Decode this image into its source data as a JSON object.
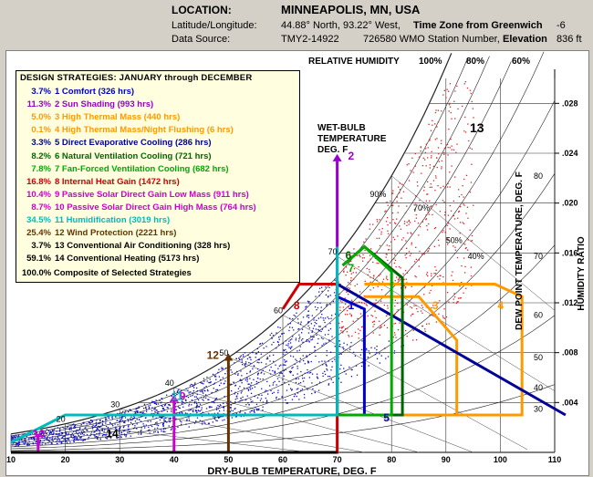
{
  "header": {
    "location_label": "LOCATION:",
    "location_value": "MINNEAPOLIS, MN, USA",
    "latlon_label": "Latitude/Longitude:",
    "latlon_value": "44.88° North, 93.22° West,",
    "tz_label": "Time Zone from Greenwich",
    "tz_value": "-6",
    "source_label": "Data Source:",
    "source_value": "TMY2-14922",
    "station_value": "726580 WMO Station Number,",
    "elev_label": "Elevation",
    "elev_value": "836 ft"
  },
  "legend": {
    "title": "DESIGN STRATEGIES: JANUARY through DECEMBER",
    "items": [
      {
        "pct": "3.7%",
        "text": "1  Comfort (326 hrs)",
        "color": "#0000cc"
      },
      {
        "pct": "11.3%",
        "text": "2  Sun Shading (993 hrs)",
        "color": "#9900cc"
      },
      {
        "pct": "5.0%",
        "text": "3  High Thermal Mass (440 hrs)",
        "color": "#ff9900"
      },
      {
        "pct": "0.1%",
        "text": "4  High Thermal Mass/Night Flushing (6 hrs)",
        "color": "#ff9900"
      },
      {
        "pct": "3.3%",
        "text": "5  Direct Evaporative Cooling (286 hrs)",
        "color": "#000099"
      },
      {
        "pct": "8.2%",
        "text": "6  Natural Ventilation Cooling (721 hrs)",
        "color": "#006600"
      },
      {
        "pct": "7.8%",
        "text": "7  Fan-Forced Ventilation Cooling (682 hrs)",
        "color": "#00aa00"
      },
      {
        "pct": "16.8%",
        "text": "8  Internal Heat Gain (1472 hrs)",
        "color": "#cc0000"
      },
      {
        "pct": "10.4%",
        "text": "9  Passive Solar Direct Gain Low Mass (911 hrs)",
        "color": "#cc00cc"
      },
      {
        "pct": "8.7%",
        "text": "10 Passive Solar Direct Gain High Mass (764 hrs)",
        "color": "#cc00cc"
      },
      {
        "pct": "34.5%",
        "text": "11  Humidification (3019 hrs)",
        "color": "#00bbbb"
      },
      {
        "pct": "25.4%",
        "text": "12  Wind Protection (2221 hrs)",
        "color": "#663300"
      },
      {
        "pct": "3.7%",
        "text": "13  Conventional Air Conditioning (328 hrs)",
        "color": "#000000"
      },
      {
        "pct": "59.1%",
        "text": "14  Conventional Heating (5173 hrs)",
        "color": "#000000"
      }
    ],
    "composite": "100.0% Composite of Selected Strategies"
  },
  "chart_data": {
    "type": "psychrometric",
    "xlabel": "DRY-BULB TEMPERATURE, DEG. F",
    "ylabel_right": "HUMIDITY RATIO",
    "dewpoint_label": "DEW POINT TEMPERATURE, DEG. F",
    "rh_title": "RELATIVE HUMIDITY",
    "rh_top_labels": [
      "100%",
      "80%",
      "60%"
    ],
    "rh_inner_labels": [
      "90%",
      "70%",
      "50%",
      "40%"
    ],
    "wetbulb_label": [
      "WET-BULB",
      "TEMPERATURE",
      "DEG. F"
    ],
    "zone_13_label": "13",
    "xlim": [
      10,
      110
    ],
    "ylim": [
      0,
      0.03
    ],
    "x_ticks": [
      10,
      20,
      30,
      40,
      50,
      60,
      70,
      80,
      90,
      100,
      110
    ],
    "y_ticks": [
      ".004",
      ".008",
      ".012",
      ".016",
      ".020",
      ".024",
      ".028"
    ],
    "y_tick_values": [
      0.004,
      0.008,
      0.012,
      0.016,
      0.02,
      0.024,
      0.028
    ],
    "dewpoint_ticks": [
      "30",
      "40",
      "50",
      "60",
      "70",
      "80"
    ],
    "wetbulb_ticks": [
      "20",
      "30",
      "40",
      "50",
      "60",
      "70"
    ],
    "zones": [
      {
        "id": "1",
        "color": "#0000cc",
        "points": [
          [
            70,
            0.003
          ],
          [
            75,
            0.003
          ],
          [
            75,
            0.0115
          ],
          [
            70,
            0.0125
          ]
        ]
      },
      {
        "id": "2",
        "color": "#9900cc",
        "points": [
          [
            70,
            0.003
          ],
          [
            70,
            0.0235
          ]
        ]
      },
      {
        "id": "3",
        "color": "#ff9900",
        "points": [
          [
            75,
            0.003
          ],
          [
            92,
            0.003
          ],
          [
            92,
            0.009
          ],
          [
            85,
            0.0125
          ],
          [
            75,
            0.0125
          ]
        ]
      },
      {
        "id": "4",
        "color": "#ff9900",
        "points": [
          [
            75,
            0.003
          ],
          [
            104,
            0.003
          ],
          [
            104,
            0.0125
          ],
          [
            99,
            0.0135
          ],
          [
            75,
            0.0135
          ]
        ]
      },
      {
        "id": "5",
        "color": "#000099",
        "points": [
          [
            70,
            0.003
          ],
          [
            70,
            0.0135
          ],
          [
            112,
            0.003
          ]
        ]
      },
      {
        "id": "6",
        "color": "#006600",
        "points": [
          [
            70,
            0.003
          ],
          [
            82,
            0.003
          ],
          [
            82,
            0.014
          ],
          [
            75,
            0.0165
          ],
          [
            71,
            0.015
          ]
        ]
      },
      {
        "id": "7",
        "color": "#00aa00",
        "points": [
          [
            70,
            0.003
          ],
          [
            80,
            0.003
          ],
          [
            80,
            0.0145
          ],
          [
            75,
            0.0165
          ],
          [
            71,
            0.015
          ]
        ]
      },
      {
        "id": "8",
        "color": "#cc0000",
        "points": [
          [
            60,
            0
          ],
          [
            70,
            0
          ],
          [
            70,
            0.0135
          ],
          [
            63,
            0.0135
          ],
          [
            60,
            0.0115
          ]
        ]
      },
      {
        "id": "9",
        "color": "#cc00cc",
        "points": [
          [
            40,
            0
          ],
          [
            40,
            0.0042
          ]
        ]
      },
      {
        "id": "10",
        "color": "#cc00cc",
        "points": [
          [
            15,
            0
          ],
          [
            15,
            0.0015
          ]
        ]
      },
      {
        "id": "11",
        "color": "#00bbbb",
        "points": [
          [
            10,
            0.0008
          ],
          [
            20,
            0.003
          ],
          [
            70,
            0.003
          ],
          [
            70,
            0.0165
          ]
        ]
      },
      {
        "id": "12",
        "color": "#663300",
        "points": [
          [
            50,
            0
          ],
          [
            50,
            0.0075
          ]
        ]
      },
      {
        "id": "14",
        "color": "#000000",
        "points": [
          [
            10,
            0
          ],
          [
            70,
            0
          ]
        ]
      }
    ],
    "zone_labels": [
      "1",
      "2",
      "3",
      "4",
      "5",
      "6",
      "7",
      "8",
      "9",
      "10",
      "11",
      "12",
      "14"
    ]
  }
}
